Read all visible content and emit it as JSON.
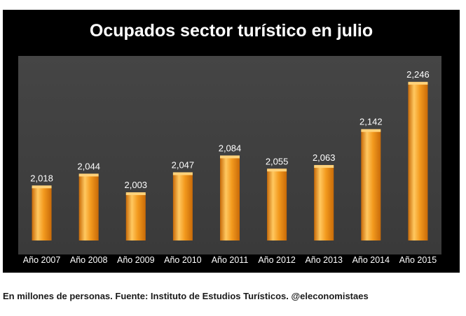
{
  "chart_data": {
    "type": "bar",
    "title": "Ocupados sector turístico en julio",
    "categories": [
      "Año 2007",
      "Año 2008",
      "Año 2009",
      "Año 2010",
      "Año 2011",
      "Año 2012",
      "Año 2013",
      "Año 2014",
      "Año 2015"
    ],
    "values": [
      2.018,
      2.044,
      2.003,
      2.047,
      2.084,
      2.055,
      2.063,
      2.142,
      2.246
    ],
    "data_labels": [
      "2,018",
      "2,044",
      "2,003",
      "2,047",
      "2,084",
      "2,055",
      "2,063",
      "2,142",
      "2,246"
    ],
    "xlabel": "",
    "ylabel": "",
    "ylim": [
      1.9,
      2.26
    ],
    "grid": false,
    "legend": "none",
    "colors": {
      "bar": "#f39a1e",
      "bar_light": "#ffc860",
      "bar_dark": "#c86a08",
      "background": "#000000",
      "plot_background": "#404040",
      "text": "#ffffff"
    }
  },
  "footnote": "En millones de personas. Fuente: Instituto de Estudios Turísticos. @eleconomistaes"
}
